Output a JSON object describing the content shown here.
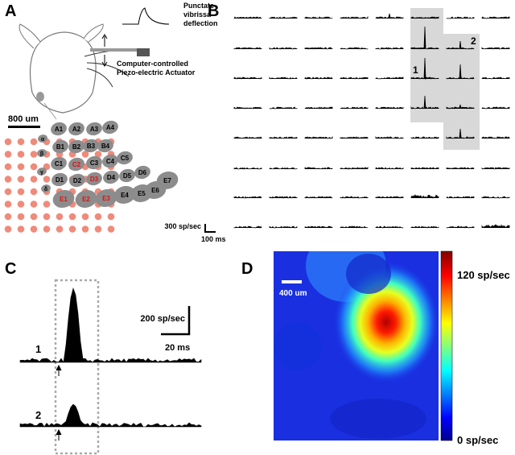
{
  "panels": {
    "a": "A",
    "b": "B",
    "c": "C",
    "d": "D"
  },
  "panel_a": {
    "stimulus_label": [
      "Punctate",
      "vibrissa",
      "deflection"
    ],
    "actuator_label": [
      "Computer-controlled",
      "Piezo-electric Actuator"
    ],
    "scale_label": "800 um",
    "barrels": [
      "A1",
      "A2",
      "A3",
      "A4",
      "α",
      "B1",
      "B2",
      "B3",
      "B4",
      "β",
      "C1",
      "C2",
      "C3",
      "C4",
      "C5",
      "γ",
      "D1",
      "D2",
      "D3",
      "D4",
      "D5",
      "D6",
      "δ",
      "E1",
      "E2",
      "E3",
      "E4",
      "E5",
      "E6",
      "E7"
    ],
    "rate_scale": "300 sp/sec",
    "time_scale": "100 ms"
  },
  "panel_b": {
    "site_labels": [
      "1",
      "2"
    ]
  },
  "panel_c": {
    "rate_scale": "200 sp/sec",
    "time_scale": "20 ms",
    "trace_labels": [
      "1",
      "2"
    ]
  },
  "panel_d": {
    "scale_label": "400 um",
    "colorbar_max": "120 sp/sec",
    "colorbar_min": "0 sp/sec"
  }
}
